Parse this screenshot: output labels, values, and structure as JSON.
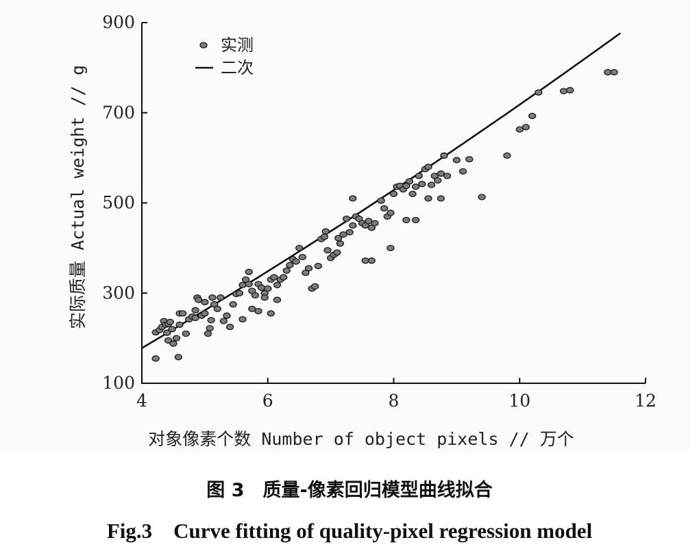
{
  "chart_data": {
    "type": "scatter",
    "xlabel": "对象像素个数 Number of object pixels // 万个",
    "ylabel": "实际质量 Actual weight // g",
    "xlim": [
      4,
      12
    ],
    "ylim": [
      100,
      900
    ],
    "xticks": [
      "4",
      "6",
      "8",
      "10",
      "12"
    ],
    "yticks": [
      "100",
      "300",
      "500",
      "700",
      "900"
    ],
    "legend": {
      "placement": "top-left",
      "points_label": "实测",
      "line_label": "二次"
    },
    "series": [
      {
        "name": "实测",
        "kind": "points",
        "points": [
          [
            4.22,
            155
          ],
          [
            4.22,
            213
          ],
          [
            4.28,
            218
          ],
          [
            4.32,
            225
          ],
          [
            4.35,
            238
          ],
          [
            4.38,
            230
          ],
          [
            4.42,
            232
          ],
          [
            4.45,
            236
          ],
          [
            4.4,
            212
          ],
          [
            4.48,
            220
          ],
          [
            4.42,
            195
          ],
          [
            4.5,
            188
          ],
          [
            4.55,
            200
          ],
          [
            4.6,
            230
          ],
          [
            4.6,
            255
          ],
          [
            4.58,
            158
          ],
          [
            4.65,
            255
          ],
          [
            4.7,
            210
          ],
          [
            4.75,
            242
          ],
          [
            4.8,
            248
          ],
          [
            4.85,
            245
          ],
          [
            4.85,
            262
          ],
          [
            4.88,
            290
          ],
          [
            4.9,
            285
          ],
          [
            4.95,
            250
          ],
          [
            5.0,
            255
          ],
          [
            5.0,
            280
          ],
          [
            5.05,
            210
          ],
          [
            5.08,
            222
          ],
          [
            5.1,
            240
          ],
          [
            5.12,
            290
          ],
          [
            5.15,
            275
          ],
          [
            5.2,
            265
          ],
          [
            5.25,
            290
          ],
          [
            5.3,
            238
          ],
          [
            5.35,
            250
          ],
          [
            5.4,
            225
          ],
          [
            5.45,
            275
          ],
          [
            5.5,
            298
          ],
          [
            5.55,
            300
          ],
          [
            5.6,
            318
          ],
          [
            5.65,
            330
          ],
          [
            5.7,
            320
          ],
          [
            5.75,
            305
          ],
          [
            5.8,
            295
          ],
          [
            5.85,
            320
          ],
          [
            5.9,
            312
          ],
          [
            5.95,
            300
          ],
          [
            5.7,
            347
          ],
          [
            5.6,
            242
          ],
          [
            5.75,
            265
          ],
          [
            5.85,
            260
          ],
          [
            5.95,
            290
          ],
          [
            6.0,
            310
          ],
          [
            6.05,
            330
          ],
          [
            6.1,
            335
          ],
          [
            6.15,
            318
          ],
          [
            6.2,
            330
          ],
          [
            6.25,
            335
          ],
          [
            6.3,
            350
          ],
          [
            6.35,
            362
          ],
          [
            6.4,
            375
          ],
          [
            6.15,
            285
          ],
          [
            6.05,
            255
          ],
          [
            6.45,
            370
          ],
          [
            6.5,
            400
          ],
          [
            6.55,
            380
          ],
          [
            6.6,
            345
          ],
          [
            6.65,
            355
          ],
          [
            6.7,
            310
          ],
          [
            6.75,
            315
          ],
          [
            6.8,
            360
          ],
          [
            6.85,
            420
          ],
          [
            6.9,
            425
          ],
          [
            6.95,
            395
          ],
          [
            7.0,
            378
          ],
          [
            7.05,
            385
          ],
          [
            7.1,
            390
          ],
          [
            7.15,
            410
          ],
          [
            7.2,
            430
          ],
          [
            7.25,
            465
          ],
          [
            7.3,
            435
          ],
          [
            7.35,
            450
          ],
          [
            7.4,
            470
          ],
          [
            7.45,
            465
          ],
          [
            7.5,
            455
          ],
          [
            7.55,
            450
          ],
          [
            7.6,
            460
          ],
          [
            7.65,
            445
          ],
          [
            7.7,
            455
          ],
          [
            6.92,
            437
          ],
          [
            7.12,
            422
          ],
          [
            7.35,
            510
          ],
          [
            7.55,
            372
          ],
          [
            7.65,
            372
          ],
          [
            7.8,
            505
          ],
          [
            7.85,
            488
          ],
          [
            7.9,
            470
          ],
          [
            7.95,
            478
          ],
          [
            8.0,
            520
          ],
          [
            8.05,
            536
          ],
          [
            8.1,
            538
          ],
          [
            8.15,
            530
          ],
          [
            8.2,
            538
          ],
          [
            8.25,
            548
          ],
          [
            8.3,
            520
          ],
          [
            8.35,
            536
          ],
          [
            8.4,
            560
          ],
          [
            8.45,
            542
          ],
          [
            8.5,
            575
          ],
          [
            8.55,
            580
          ],
          [
            8.6,
            540
          ],
          [
            8.65,
            560
          ],
          [
            8.7,
            550
          ],
          [
            8.75,
            565
          ],
          [
            8.8,
            605
          ],
          [
            8.85,
            560
          ],
          [
            7.95,
            400
          ],
          [
            8.2,
            462
          ],
          [
            8.35,
            462
          ],
          [
            8.55,
            510
          ],
          [
            8.75,
            510
          ],
          [
            9.0,
            595
          ],
          [
            9.1,
            570
          ],
          [
            9.2,
            597
          ],
          [
            9.4,
            513
          ],
          [
            9.8,
            605
          ],
          [
            10.0,
            663
          ],
          [
            10.1,
            668
          ],
          [
            10.2,
            693
          ],
          [
            10.3,
            745
          ],
          [
            10.7,
            748
          ],
          [
            10.8,
            750
          ],
          [
            11.4,
            790
          ],
          [
            11.5,
            790
          ]
        ]
      },
      {
        "name": "二次",
        "kind": "quadratic-fit",
        "coefficients": {
          "a": 1.2,
          "b": 73.2,
          "c": -134
        }
      }
    ]
  },
  "caption": {
    "cn": "图 3　质量-像素回归模型曲线拟合",
    "en": "Fig.3　Curve fitting of quality-pixel regression model"
  }
}
